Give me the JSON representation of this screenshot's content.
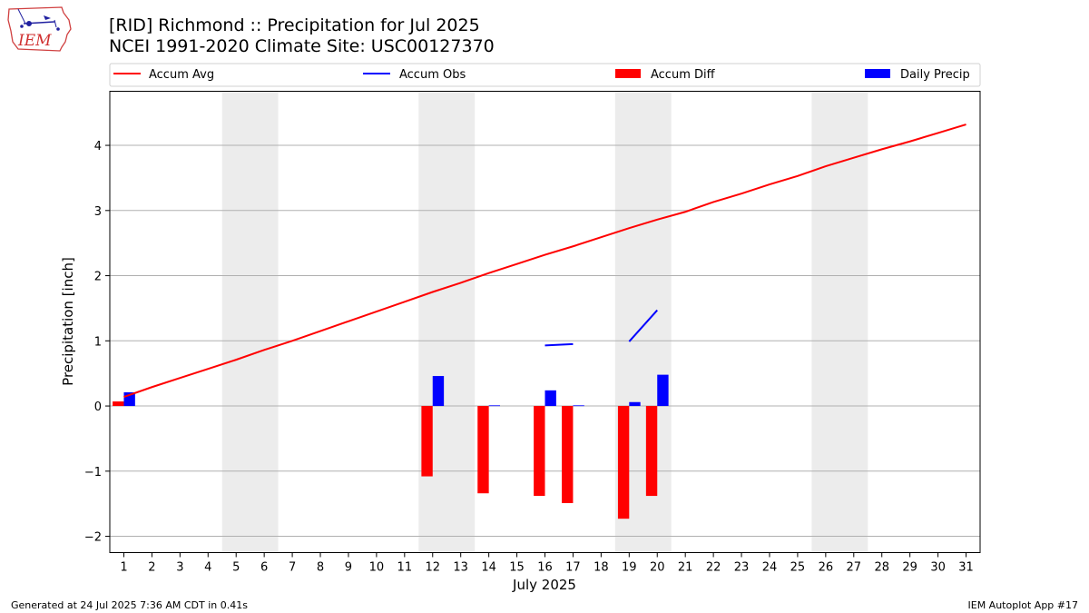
{
  "header": {
    "title_line1": "[RID] Richmond :: Precipitation for Jul 2025",
    "title_line2": "NCEI 1991-2020 Climate Site: USC00127370"
  },
  "logo": {
    "text": "IEM"
  },
  "footer": {
    "generated": "Generated at 24 Jul 2025 7:36 AM CDT in 0.41s",
    "app": "IEM Autoplot App #17"
  },
  "colors": {
    "avg": "#ff0000",
    "obs": "#0000ff",
    "diff": "#ff0000",
    "daily": "#0000ff",
    "weekend": "#ececec",
    "grid": "#b0b0b0"
  },
  "chart_data": {
    "type": "bar",
    "xlabel": "July 2025",
    "ylabel": "Precipitation [inch]",
    "xlim": [
      0.5,
      31.5
    ],
    "ylim": [
      -2.25,
      4.83
    ],
    "yticks": [
      -2,
      -1,
      0,
      1,
      2,
      3,
      4
    ],
    "ytick_labels": [
      "−2",
      "−1",
      "0",
      "1",
      "2",
      "3",
      "4"
    ],
    "days": [
      1,
      2,
      3,
      4,
      5,
      6,
      7,
      8,
      9,
      10,
      11,
      12,
      13,
      14,
      15,
      16,
      17,
      18,
      19,
      20,
      21,
      22,
      23,
      24,
      25,
      26,
      27,
      28,
      29,
      30,
      31
    ],
    "weekend_spans": [
      [
        4.5,
        6.5
      ],
      [
        11.5,
        13.5
      ],
      [
        18.5,
        20.5
      ],
      [
        25.5,
        27.5
      ]
    ],
    "grid": "y",
    "legend": {
      "placement": "top",
      "entries": [
        {
          "label": "Accum Avg",
          "kind": "line",
          "color": "#ff0000"
        },
        {
          "label": "Accum Obs",
          "kind": "line",
          "color": "#0000ff"
        },
        {
          "label": "Accum Diff",
          "kind": "bar",
          "color": "#ff0000"
        },
        {
          "label": "Daily Precip",
          "kind": "bar",
          "color": "#0000ff"
        }
      ]
    },
    "series": [
      {
        "name": "Accum Avg",
        "type": "line",
        "x": [
          1,
          2,
          3,
          4,
          5,
          6,
          7,
          8,
          9,
          10,
          11,
          12,
          13,
          14,
          15,
          16,
          17,
          18,
          19,
          20,
          21,
          22,
          23,
          24,
          25,
          26,
          27,
          28,
          29,
          30,
          31
        ],
        "values": [
          0.14,
          0.29,
          0.43,
          0.57,
          0.71,
          0.86,
          1.0,
          1.15,
          1.3,
          1.45,
          1.6,
          1.75,
          1.89,
          2.04,
          2.18,
          2.32,
          2.45,
          2.59,
          2.73,
          2.86,
          2.98,
          3.13,
          3.26,
          3.4,
          3.53,
          3.68,
          3.81,
          3.94,
          4.06,
          4.19,
          4.32
        ]
      },
      {
        "name": "Accum Obs",
        "type": "line",
        "segments": [
          {
            "x": [
              16,
              17
            ],
            "values": [
              0.93,
              0.95
            ]
          },
          {
            "x": [
              19,
              20
            ],
            "values": [
              0.99,
              1.47
            ]
          }
        ]
      },
      {
        "name": "Accum Diff",
        "type": "bar",
        "x": [
          1,
          12,
          14,
          16,
          17,
          19,
          20
        ],
        "values": [
          0.07,
          -1.08,
          -1.34,
          -1.38,
          -1.49,
          -1.73,
          -1.38
        ]
      },
      {
        "name": "Daily Precip",
        "type": "bar",
        "x": [
          1,
          12,
          14,
          16,
          17,
          19,
          20
        ],
        "values": [
          0.21,
          0.46,
          0.01,
          0.24,
          0.01,
          0.06,
          0.48
        ]
      }
    ]
  }
}
